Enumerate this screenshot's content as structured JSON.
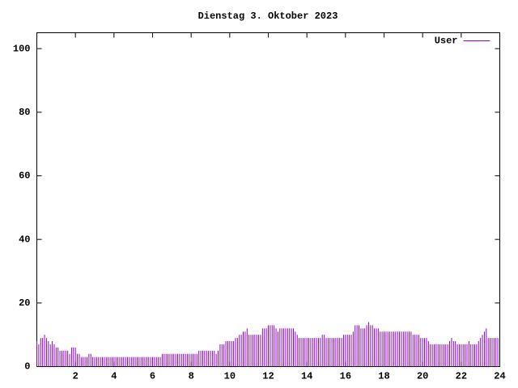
{
  "chart_data": {
    "type": "impulse",
    "title": "Dienstag 3. Oktober 2023",
    "series": [
      {
        "name": "User",
        "color": "#9400d3",
        "x": [
          0,
          0.1,
          0.2,
          0.3,
          0.4,
          0.5,
          0.6,
          0.7,
          0.8,
          0.9,
          1,
          1.1,
          1.2,
          1.3,
          1.4,
          1.5,
          1.6,
          1.7,
          1.8,
          1.9,
          2,
          2.1,
          2.2,
          2.3,
          2.4,
          2.5,
          2.6,
          2.7,
          2.8,
          2.9,
          3,
          3.1,
          3.2,
          3.3,
          3.4,
          3.5,
          3.6,
          3.7,
          3.8,
          3.9,
          4,
          4.1,
          4.2,
          4.3,
          4.4,
          4.5,
          4.6,
          4.7,
          4.8,
          4.9,
          5,
          5.1,
          5.2,
          5.3,
          5.4,
          5.5,
          5.6,
          5.7,
          5.8,
          5.9,
          6,
          6.1,
          6.2,
          6.3,
          6.4,
          6.5,
          6.6,
          6.7,
          6.8,
          6.9,
          7,
          7.1,
          7.2,
          7.3,
          7.4,
          7.5,
          7.6,
          7.7,
          7.8,
          7.9,
          8,
          8.1,
          8.2,
          8.3,
          8.4,
          8.5,
          8.6,
          8.7,
          8.8,
          8.9,
          9,
          9.1,
          9.2,
          9.3,
          9.4,
          9.5,
          9.6,
          9.7,
          9.8,
          9.9,
          10,
          10.1,
          10.2,
          10.3,
          10.4,
          10.5,
          10.6,
          10.7,
          10.8,
          10.9,
          11,
          11.1,
          11.2,
          11.3,
          11.4,
          11.5,
          11.6,
          11.7,
          11.8,
          11.9,
          12,
          12.1,
          12.2,
          12.3,
          12.4,
          12.5,
          12.6,
          12.7,
          12.8,
          12.9,
          13,
          13.1,
          13.2,
          13.3,
          13.4,
          13.5,
          13.6,
          13.7,
          13.8,
          13.9,
          14,
          14.1,
          14.2,
          14.3,
          14.4,
          14.5,
          14.6,
          14.7,
          14.8,
          14.9,
          15,
          15.1,
          15.2,
          15.3,
          15.4,
          15.5,
          15.6,
          15.7,
          15.8,
          15.9,
          16,
          16.1,
          16.2,
          16.3,
          16.4,
          16.5,
          16.6,
          16.7,
          16.8,
          16.9,
          17,
          17.1,
          17.2,
          17.3,
          17.4,
          17.5,
          17.6,
          17.7,
          17.8,
          17.9,
          18,
          18.1,
          18.2,
          18.3,
          18.4,
          18.5,
          18.6,
          18.7,
          18.8,
          18.9,
          19,
          19.1,
          19.2,
          19.3,
          19.4,
          19.5,
          19.6,
          19.7,
          19.8,
          19.9,
          20,
          20.1,
          20.2,
          20.3,
          20.4,
          20.5,
          20.6,
          20.7,
          20.8,
          20.9,
          21,
          21.1,
          21.2,
          21.3,
          21.4,
          21.5,
          21.6,
          21.7,
          21.8,
          21.9,
          22,
          22.1,
          22.2,
          22.3,
          22.4,
          22.5,
          22.6,
          22.7,
          22.8,
          22.9,
          23,
          23.1,
          23.2,
          23.3,
          23.4,
          23.5,
          23.6,
          23.7,
          23.8,
          23.9
        ],
        "values": [
          8,
          7,
          9,
          9,
          10,
          9,
          8,
          7,
          8,
          7,
          6,
          6,
          5,
          5,
          5,
          5,
          5,
          4,
          6,
          6,
          6,
          4,
          4,
          3,
          3,
          3,
          3,
          4,
          4,
          3,
          3,
          3,
          3,
          3,
          3,
          3,
          3,
          3,
          3,
          3,
          3,
          3,
          3,
          3,
          3,
          3,
          3,
          3,
          3,
          3,
          3,
          3,
          3,
          3,
          3,
          3,
          3,
          3,
          3,
          3,
          3,
          3,
          3,
          3,
          3,
          4,
          4,
          4,
          4,
          4,
          4,
          4,
          4,
          4,
          4,
          4,
          4,
          4,
          4,
          4,
          4,
          4,
          4,
          4,
          5,
          5,
          5,
          5,
          5,
          5,
          5,
          5,
          5,
          4,
          5,
          7,
          7,
          7,
          8,
          8,
          8,
          8,
          8,
          9,
          9,
          10,
          10,
          11,
          11,
          12,
          10,
          10,
          10,
          10,
          10,
          10,
          10,
          12,
          12,
          12,
          13,
          13,
          13,
          13,
          12,
          11,
          12,
          12,
          12,
          12,
          12,
          12,
          12,
          12,
          11,
          10,
          9,
          9,
          9,
          9,
          9,
          9,
          9,
          9,
          9,
          9,
          9,
          9,
          10,
          10,
          9,
          9,
          9,
          9,
          9,
          9,
          9,
          9,
          9,
          10,
          10,
          10,
          10,
          10,
          11,
          13,
          13,
          13,
          12,
          12,
          12,
          13,
          14,
          13,
          13,
          12,
          12,
          12,
          11,
          11,
          11,
          11,
          11,
          11,
          11,
          11,
          11,
          11,
          11,
          11,
          11,
          11,
          11,
          11,
          11,
          10,
          10,
          10,
          10,
          9,
          9,
          9,
          9,
          8,
          7,
          7,
          7,
          7,
          7,
          7,
          7,
          7,
          7,
          7,
          8,
          9,
          8,
          8,
          7,
          7,
          7,
          7,
          7,
          7,
          8,
          7,
          7,
          7,
          7,
          8,
          9,
          10,
          11,
          12,
          9,
          9,
          9,
          9,
          9,
          9
        ]
      }
    ],
    "xlim": [
      0,
      24
    ],
    "xticks": [
      2,
      4,
      6,
      8,
      10,
      12,
      14,
      16,
      18,
      20,
      22,
      24
    ],
    "ylim": [
      0,
      105
    ],
    "yticks": [
      0,
      20,
      40,
      60,
      80,
      100
    ],
    "legend": "top-right"
  }
}
